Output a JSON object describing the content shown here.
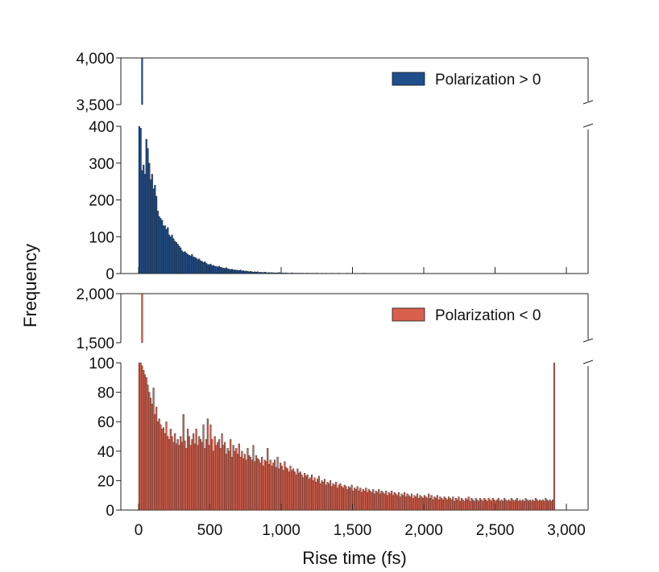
{
  "chart_data": {
    "type": "bar",
    "title": "",
    "xlabel": "Rise time (fs)",
    "ylabel": "Frequency",
    "xlim": [
      0,
      3000
    ],
    "x_ticks": [
      "0",
      "500",
      "1,000",
      "1,500",
      "2,000",
      "2,500",
      "3,000"
    ],
    "bin_width_fs": 10,
    "panels": [
      {
        "series_name": "Polarization > 0",
        "color": "#1f4e8c",
        "legend_position": "top-right",
        "broken_y_axis": true,
        "upper_ylim": [
          3500,
          4000
        ],
        "upper_ticks": [
          "4,000",
          "3,500"
        ],
        "lower_ylim": [
          0,
          400
        ],
        "lower_ticks": [
          "400",
          "300",
          "200",
          "100",
          "0"
        ],
        "peak_bin": {
          "x": 25,
          "value": 4000
        },
        "values": [
          4000,
          395,
          280,
          295,
          270,
          365,
          340,
          300,
          255,
          270,
          230,
          240,
          210,
          170,
          155,
          150,
          145,
          130,
          130,
          120,
          125,
          105,
          100,
          105,
          95,
          88,
          85,
          80,
          75,
          70,
          62,
          58,
          60,
          56,
          52,
          50,
          48,
          52,
          45,
          44,
          42,
          38,
          40,
          35,
          33,
          30,
          32,
          28,
          25,
          24,
          26,
          22,
          22,
          20,
          19,
          18,
          20,
          17,
          16,
          15,
          14,
          16,
          13,
          12,
          11,
          12,
          10,
          10,
          9,
          9,
          8,
          10,
          7,
          8,
          6,
          7,
          6,
          5,
          6,
          5,
          4,
          5,
          4,
          5,
          3,
          4,
          3,
          3,
          4,
          3,
          2,
          3,
          2,
          3,
          2,
          2,
          2,
          2,
          3,
          2,
          1,
          2,
          1,
          2,
          1,
          1,
          1,
          2,
          1,
          1,
          1,
          1,
          1,
          1,
          1,
          1,
          0,
          1,
          1,
          0,
          1,
          0,
          1,
          0,
          1,
          1,
          0,
          0,
          1,
          0,
          0,
          1,
          0,
          0,
          0,
          1,
          0,
          0,
          0,
          0,
          1,
          0,
          0,
          0,
          0,
          0,
          1,
          0,
          0,
          0,
          0,
          0,
          0,
          0,
          0,
          0,
          0,
          0,
          1,
          0,
          0,
          0,
          0,
          0,
          0,
          0,
          0,
          0,
          0,
          0,
          0,
          0,
          0,
          0,
          0,
          0,
          0,
          0,
          0,
          0,
          0,
          0,
          0,
          0,
          0,
          0,
          0,
          0,
          0,
          0,
          0,
          0,
          0,
          0,
          0,
          0,
          0,
          0,
          0,
          0,
          0,
          0,
          0,
          0,
          0,
          0,
          0,
          0,
          0,
          0,
          0,
          0,
          0,
          0,
          0,
          0,
          0,
          0,
          0,
          0,
          0,
          0,
          0,
          0,
          0,
          0,
          0,
          0,
          0,
          0,
          0,
          0,
          0,
          0,
          0,
          0,
          0,
          0,
          0,
          0,
          0,
          0,
          0,
          0,
          0,
          0,
          0,
          0,
          0,
          0,
          0,
          0,
          0,
          0,
          0,
          0,
          0,
          0,
          0,
          0,
          0,
          0,
          0,
          0,
          0,
          0,
          0,
          0,
          0,
          0,
          0,
          0,
          0,
          0,
          0,
          0,
          0,
          0,
          0,
          0,
          0,
          0,
          0,
          0,
          0,
          0,
          0,
          0,
          0,
          0,
          0,
          0,
          0,
          0,
          0,
          0,
          0,
          0,
          0,
          0,
          0,
          0,
          0,
          0,
          0,
          0,
          0,
          0,
          0,
          0,
          0,
          0,
          0,
          0,
          0,
          0,
          0,
          0,
          0,
          0,
          0,
          0,
          0,
          0,
          0
        ]
      },
      {
        "series_name": "Polarization < 0",
        "color": "#d9604c",
        "legend_position": "top-right",
        "broken_y_axis": true,
        "upper_ylim": [
          1500,
          2000
        ],
        "upper_ticks": [
          "2,000",
          "1,500"
        ],
        "lower_ylim": [
          0,
          100
        ],
        "lower_ticks": [
          "100",
          "80",
          "60",
          "40",
          "20",
          "0"
        ],
        "peak_bin": {
          "x": 25,
          "value": 2000
        },
        "values": [
          2000,
          100,
          98,
          95,
          92,
          90,
          85,
          80,
          76,
          72,
          83,
          65,
          70,
          60,
          62,
          58,
          55,
          56,
          52,
          60,
          50,
          48,
          55,
          50,
          46,
          52,
          45,
          48,
          44,
          50,
          46,
          65,
          47,
          42,
          55,
          50,
          44,
          48,
          52,
          45,
          55,
          44,
          50,
          48,
          46,
          58,
          42,
          48,
          62,
          44,
          58,
          48,
          40,
          50,
          44,
          46,
          48,
          42,
          52,
          44,
          46,
          38,
          42,
          40,
          48,
          36,
          44,
          40,
          42,
          38,
          45,
          36,
          40,
          35,
          38,
          34,
          42,
          37,
          36,
          34,
          44,
          33,
          37,
          35,
          34,
          32,
          36,
          30,
          34,
          33,
          42,
          31,
          34,
          30,
          32,
          34,
          29,
          36,
          28,
          32,
          30,
          27,
          33,
          29,
          28,
          26,
          30,
          27,
          28,
          26,
          24,
          28,
          25,
          26,
          24,
          22,
          25,
          23,
          24,
          21,
          22,
          24,
          20,
          22,
          19,
          21,
          23,
          18,
          20,
          19,
          21,
          17,
          19,
          18,
          20,
          16,
          18,
          17,
          19,
          15,
          17,
          18,
          16,
          15,
          17,
          16,
          14,
          16,
          15,
          17,
          13,
          15,
          14,
          16,
          13,
          15,
          12,
          14,
          13,
          15,
          12,
          14,
          13,
          12,
          14,
          11,
          13,
          12,
          14,
          11,
          13,
          12,
          11,
          13,
          10,
          12,
          11,
          13,
          10,
          12,
          11,
          10,
          12,
          9,
          11,
          10,
          12,
          9,
          11,
          10,
          9,
          11,
          8,
          10,
          9,
          11,
          8,
          10,
          9,
          8,
          10,
          9,
          8,
          11,
          8,
          10,
          7,
          9,
          8,
          10,
          7,
          9,
          8,
          7,
          9,
          8,
          7,
          9,
          8,
          7,
          9,
          6,
          8,
          7,
          9,
          6,
          8,
          7,
          6,
          8,
          7,
          9,
          6,
          8,
          7,
          6,
          8,
          7,
          6,
          8,
          7,
          6,
          8,
          7,
          6,
          8,
          7,
          6,
          8,
          7,
          6,
          7,
          8,
          6,
          7,
          6,
          8,
          7,
          6,
          7,
          6,
          8,
          7,
          6,
          7,
          8,
          6,
          7,
          6,
          7,
          6,
          8,
          7,
          6,
          7,
          6,
          7,
          6,
          8,
          7,
          6,
          7,
          6,
          7,
          6,
          8,
          7,
          6,
          7,
          6,
          7,
          100
        ]
      }
    ]
  }
}
